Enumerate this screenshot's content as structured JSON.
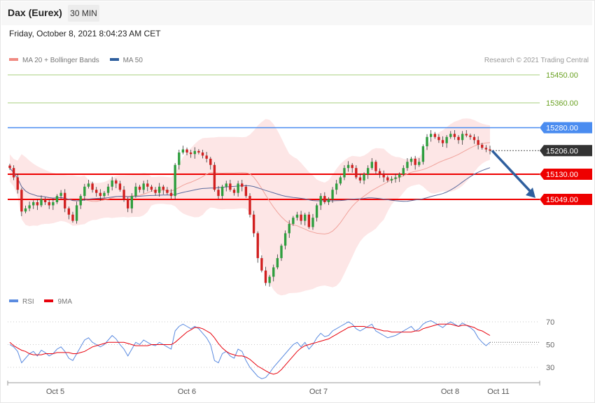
{
  "header": {
    "title": "Dax (Eurex)",
    "interval": "30 MIN",
    "datetime": "Friday, October 8, 2021 8:04:23 AM CET"
  },
  "legend": {
    "items": [
      {
        "label": "MA 20 + Bollinger Bands",
        "color": "#f08a82"
      },
      {
        "label": "MA 50",
        "color": "#2e5f9e"
      }
    ],
    "credit": "Research © 2021 Trading Central"
  },
  "rsi_legend": {
    "items": [
      {
        "label": "RSI",
        "color": "#5b8be0"
      },
      {
        "label": "9MA",
        "color": "#e8000b"
      }
    ]
  },
  "colors": {
    "up": "#2e9e3e",
    "down": "#d11f1f",
    "band_fill": "#fde6e6",
    "ma20": "#f0a39c",
    "ma50": "#5b6b9e",
    "resistance_green": "#a7cf7e",
    "level_blue": "#4a8cf0",
    "level_red": "#ee0000",
    "arrow": "#2f5f9e"
  },
  "chart_data": [
    {
      "type": "candlestick",
      "instrument": "Dax (Eurex)",
      "timeframe": "30 MIN",
      "x_labels": [
        "Oct 5",
        "Oct 6",
        "Oct 7",
        "Oct 8",
        "Oct 11"
      ],
      "ylim": [
        14700,
        15520
      ],
      "last_price": 15206.0,
      "levels": [
        {
          "value": 15450.0,
          "label": "15450.00",
          "kind": "resistance"
        },
        {
          "value": 15360.0,
          "label": "15360.00",
          "kind": "resistance"
        },
        {
          "value": 15280.0,
          "label": "15280.00",
          "kind": "pivot"
        },
        {
          "value": 15130.0,
          "label": "15130.00",
          "kind": "support"
        },
        {
          "value": 15049.0,
          "label": "15049.00",
          "kind": "support"
        }
      ],
      "closes": [
        15150,
        15120,
        15080,
        15010,
        15020,
        15030,
        15040,
        15030,
        15050,
        15040,
        15030,
        15040,
        15060,
        15070,
        15020,
        15000,
        14980,
        15030,
        15060,
        15090,
        15100,
        15080,
        15070,
        15060,
        15070,
        15090,
        15110,
        15100,
        15080,
        15050,
        15020,
        15060,
        15090,
        15080,
        15100,
        15090,
        15080,
        15070,
        15090,
        15080,
        15070,
        15060,
        15160,
        15200,
        15210,
        15200,
        15195,
        15205,
        15200,
        15190,
        15180,
        15160,
        15080,
        15060,
        15090,
        15100,
        15080,
        15070,
        15100,
        15090,
        15060,
        15000,
        14940,
        14860,
        14820,
        14780,
        14800,
        14830,
        14860,
        14900,
        14940,
        14970,
        14990,
        15000,
        14980,
        15000,
        14960,
        14990,
        15030,
        15060,
        15040,
        15050,
        15080,
        15100,
        15120,
        15150,
        15160,
        15150,
        15120,
        15110,
        15130,
        15150,
        15170,
        15140,
        15130,
        15120,
        15110,
        15115,
        15120,
        15130,
        15150,
        15170,
        15180,
        15160,
        15170,
        15220,
        15250,
        15260,
        15250,
        15240,
        15230,
        15250,
        15260,
        15250,
        15240,
        15260,
        15255,
        15250,
        15240,
        15225,
        15215,
        15210,
        15206
      ]
    },
    {
      "type": "line",
      "title": "RSI",
      "ylim": [
        20,
        80
      ],
      "yticks": [
        70,
        50,
        30
      ],
      "series": [
        {
          "name": "RSI",
          "values": [
            50,
            48,
            44,
            34,
            38,
            42,
            44,
            40,
            45,
            43,
            40,
            42,
            46,
            48,
            44,
            38,
            36,
            42,
            48,
            54,
            56,
            52,
            50,
            48,
            50,
            54,
            58,
            55,
            50,
            46,
            40,
            46,
            52,
            50,
            54,
            52,
            50,
            49,
            52,
            50,
            48,
            46,
            62,
            66,
            68,
            66,
            64,
            66,
            64,
            60,
            56,
            50,
            36,
            34,
            42,
            44,
            40,
            38,
            46,
            44,
            36,
            30,
            26,
            22,
            20,
            21,
            25,
            30,
            34,
            38,
            42,
            46,
            50,
            52,
            48,
            52,
            46,
            50,
            56,
            60,
            57,
            58,
            62,
            64,
            66,
            68,
            70,
            68,
            64,
            62,
            64,
            66,
            68,
            62,
            60,
            58,
            56,
            57,
            58,
            60,
            62,
            64,
            66,
            62,
            64,
            68,
            70,
            71,
            69,
            67,
            65,
            68,
            70,
            68,
            66,
            69,
            67,
            65,
            62,
            56,
            52,
            49,
            52
          ]
        },
        {
          "name": "9MA",
          "values": [
            52,
            49,
            47,
            45,
            44,
            42,
            41,
            41,
            41,
            42,
            42,
            42,
            43,
            43,
            43,
            43,
            42,
            42,
            43,
            44,
            46,
            48,
            49,
            50,
            51,
            52,
            52,
            52,
            52,
            52,
            51,
            50,
            49,
            49,
            49,
            49,
            50,
            50,
            50,
            50,
            50,
            50,
            52,
            55,
            58,
            61,
            63,
            65,
            65,
            64,
            62,
            60,
            56,
            51,
            47,
            44,
            42,
            41,
            40,
            40,
            39,
            37,
            34,
            31,
            29,
            27,
            25,
            24,
            25,
            28,
            32,
            36,
            40,
            44,
            47,
            49,
            50,
            51,
            52,
            53,
            54,
            55,
            57,
            59,
            61,
            63,
            65,
            66,
            66,
            66,
            66,
            65,
            65,
            64,
            63,
            62,
            62,
            61,
            61,
            61,
            61,
            61,
            61,
            62,
            62,
            64,
            65,
            66,
            67,
            68,
            68,
            68,
            68,
            67,
            66,
            67,
            67,
            66,
            65,
            63,
            62,
            60,
            58
          ]
        }
      ]
    }
  ]
}
